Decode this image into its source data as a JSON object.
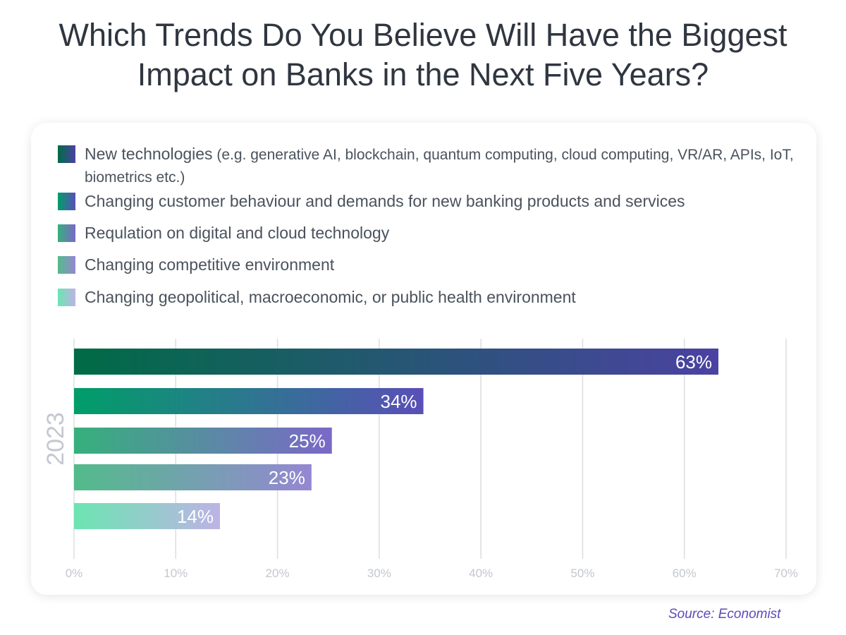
{
  "chart_data": {
    "type": "bar",
    "orientation": "horizontal",
    "title": "Which Trends Do You Believe Will Have the Biggest Impact on Banks in the Next Five Years?",
    "group_label": "2023",
    "categories": [
      "New technologies",
      "Changing customer behaviour and demands for new banking products and services",
      "Requlation on digital and cloud technology",
      "Changing competitive environment",
      "Changing geopolitical, macroeconomic, or public health environment"
    ],
    "category_notes": [
      "(e.g. generative AI, blockchain, quantum computing, cloud computing, VR/AR, APIs, IoT, biometrics etc.)",
      "",
      "",
      "",
      ""
    ],
    "values": [
      63,
      34,
      25,
      23,
      14
    ],
    "data_labels": [
      "63%",
      "34%",
      "25%",
      "23%",
      "14%"
    ],
    "xlim": [
      0,
      70
    ],
    "xticks": [
      "0%",
      "10%",
      "20%",
      "30%",
      "40%",
      "50%",
      "60%",
      "70%"
    ],
    "grid": "vertical",
    "legend_position": "top",
    "colors": [
      [
        "#006b45",
        "#4b42a2"
      ],
      [
        "#009e68",
        "#5a4fb8"
      ],
      [
        "#36b07c",
        "#7b68c8"
      ],
      [
        "#52bb8b",
        "#9587d2"
      ],
      [
        "#6be5b1",
        "#bdb3e5"
      ]
    ]
  },
  "source": "Source: Economist"
}
